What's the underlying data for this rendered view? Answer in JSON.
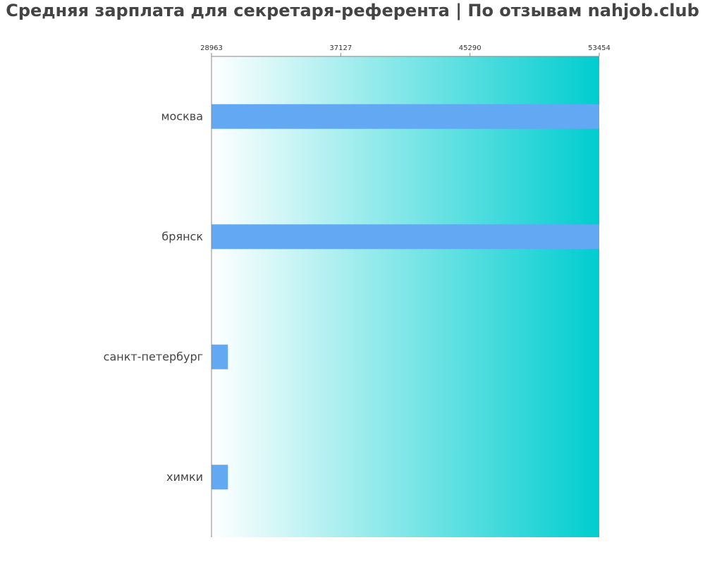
{
  "title": "Средняя зарплата для секретаря-референта | По отзывам nahjob.club",
  "colors": {
    "bar": "#63a8f2",
    "gradient_start": "#ffffff",
    "gradient_end": "#00cdcf",
    "axis": "#888888",
    "text": "#444444"
  },
  "chart_data": {
    "type": "bar",
    "orientation": "horizontal",
    "title": "Средняя зарплата для секретаря-референта | По отзывам nahjob.club",
    "xlabel": "",
    "ylabel": "",
    "xlim": [
      28963,
      53454
    ],
    "x_ticks": [
      28963,
      37127,
      45290,
      53454
    ],
    "categories": [
      "москва",
      "брянск",
      "санкт-петербург",
      "химки"
    ],
    "values": [
      53454,
      53454,
      30000,
      30000
    ],
    "grid": false,
    "legend": "none"
  }
}
